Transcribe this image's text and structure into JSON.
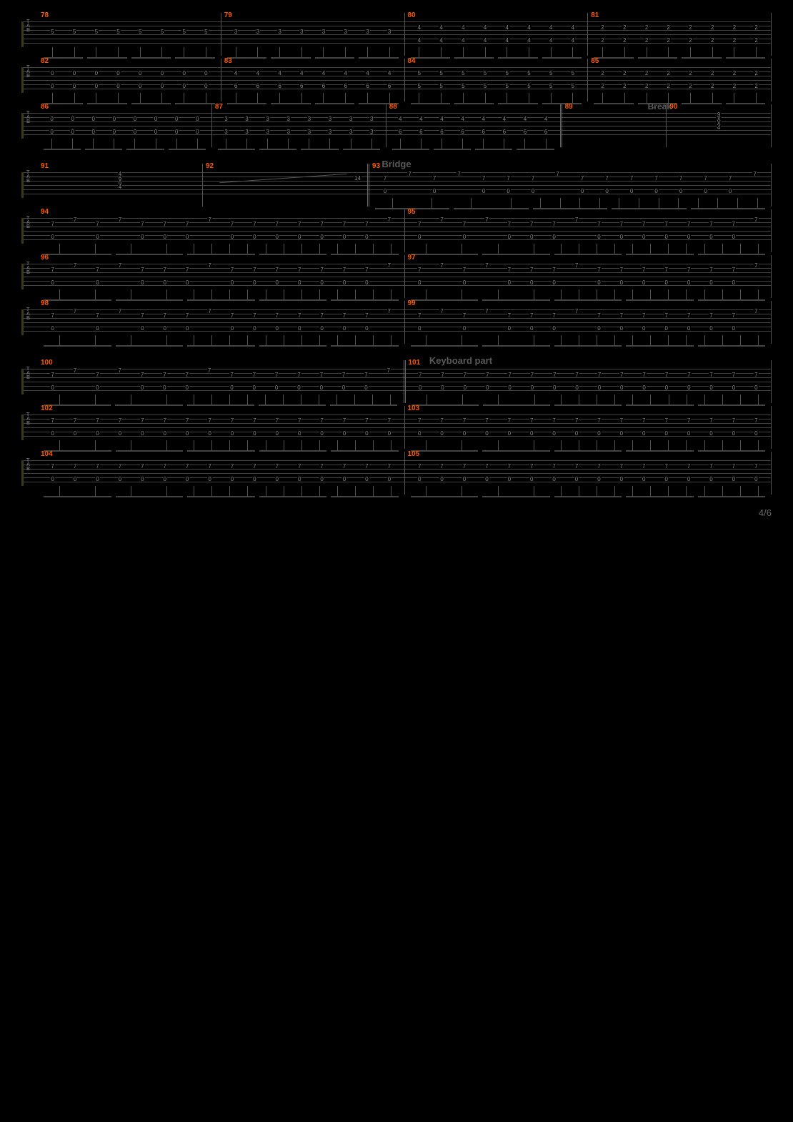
{
  "page_number": "4/6",
  "colors": {
    "background": "#000000",
    "staff_line": "#444444",
    "measure_number": "#ff5a00",
    "note_text": "#888888",
    "section_label": "#5a5a5a",
    "staff_bracket": "#3a3a1a"
  },
  "typography": {
    "measure_num_fontsize": 10,
    "note_fontsize": 8,
    "section_fontsize": 13
  },
  "tab_clef_letters": [
    "T",
    "A",
    "B"
  ],
  "sections": [
    {
      "label": "Break",
      "before_measure": 89,
      "position": "right"
    },
    {
      "label": "Bridge",
      "before_measure": 91,
      "position": "center"
    },
    {
      "label": "Keyboard part",
      "before_measure": 101,
      "position": "center-right"
    }
  ],
  "systems": [
    {
      "measures": [
        {
          "num": 78,
          "pattern": "eighth_pairs_4x2",
          "frets_low": [
            "5",
            "5",
            "5",
            "5",
            "5",
            "5",
            "5",
            "5"
          ],
          "string": 6
        },
        {
          "num": 79,
          "pattern": "eighth_pairs_4x2",
          "frets_low": [
            "3",
            "3",
            "3",
            "3",
            "3",
            "3",
            "3",
            "3"
          ],
          "string": 6
        },
        {
          "num": 80,
          "pattern": "eighth_pairs_4x2",
          "frets_two": [
            [
              "4",
              "4",
              "4",
              "4",
              "4",
              "4",
              "4",
              "4"
            ],
            [
              "4",
              "4",
              "4",
              "4",
              "4",
              "4",
              "4",
              "4"
            ]
          ],
          "strings": [
            5,
            6
          ]
        },
        {
          "num": 81,
          "pattern": "eighth_pairs_4x2",
          "frets_two": [
            [
              "2",
              "2",
              "2",
              "2",
              "2",
              "2",
              "2",
              "2"
            ],
            [
              "2",
              "2",
              "2",
              "2",
              "2",
              "2",
              "2",
              "2"
            ]
          ],
          "strings": [
            5,
            6
          ]
        }
      ]
    },
    {
      "measures": [
        {
          "num": 82,
          "pattern": "eighth_pairs_4x2",
          "frets_two": [
            [
              "0",
              "0",
              "0",
              "0",
              "0",
              "0",
              "0",
              "0"
            ],
            [
              "0",
              "0",
              "0",
              "0",
              "0",
              "0",
              "0",
              "0"
            ]
          ],
          "strings": [
            5,
            6
          ]
        },
        {
          "num": 83,
          "pattern": "eighth_pairs_4x2",
          "frets_two": [
            [
              "4",
              "4",
              "4",
              "4",
              "4",
              "4",
              "4",
              "4"
            ],
            [
              "6",
              "6",
              "6",
              "6",
              "6",
              "6",
              "6",
              "6"
            ]
          ],
          "strings": [
            5,
            6
          ]
        },
        {
          "num": 84,
          "pattern": "eighth_pairs_4x2",
          "frets_two": [
            [
              "5",
              "5",
              "5",
              "5",
              "5",
              "5",
              "5",
              "5"
            ],
            [
              "5",
              "5",
              "5",
              "5",
              "5",
              "5",
              "5",
              "5"
            ]
          ],
          "strings": [
            5,
            6
          ]
        },
        {
          "num": 85,
          "pattern": "eighth_pairs_4x2",
          "frets_two": [
            [
              "2",
              "2",
              "2",
              "2",
              "2",
              "2",
              "2",
              "2"
            ],
            [
              "2",
              "2",
              "2",
              "2",
              "2",
              "2",
              "2",
              "2"
            ]
          ],
          "strings": [
            5,
            6
          ]
        }
      ]
    },
    {
      "section_right": "Break",
      "measures": [
        {
          "num": 86,
          "pattern": "eighth_pairs_4x2",
          "frets_two": [
            [
              "0",
              "0",
              "0",
              "0",
              "0",
              "0",
              "0",
              "0"
            ],
            [
              "0",
              "0",
              "0",
              "0",
              "0",
              "0",
              "0",
              "0"
            ]
          ],
          "strings": [
            5,
            6
          ]
        },
        {
          "num": 87,
          "pattern": "eighth_pairs_4x2",
          "frets_two": [
            [
              "3",
              "3",
              "3",
              "3",
              "3",
              "3",
              "3",
              "3"
            ],
            [
              "3",
              "3",
              "3",
              "3",
              "3",
              "3",
              "3",
              "3"
            ]
          ],
          "strings": [
            5,
            6
          ]
        },
        {
          "num": 88,
          "pattern": "eighth_pairs_4x2",
          "frets_two": [
            [
              "4",
              "4",
              "4",
              "4",
              "4",
              "4",
              "4",
              "4"
            ],
            [
              "6",
              "6",
              "6",
              "6",
              "6",
              "6",
              "6",
              "6"
            ]
          ],
          "strings": [
            5,
            6
          ],
          "double_end": true
        },
        {
          "num": 89,
          "pattern": "rest",
          "width": 0.6
        },
        {
          "num": 90,
          "pattern": "chord",
          "chord": [
            "9",
            "X",
            "X",
            "4"
          ],
          "width": 0.6
        }
      ]
    },
    {
      "section_center": "Bridge",
      "measures": [
        {
          "num": 91,
          "pattern": "chord_held",
          "chord": [
            "4",
            "6",
            "6",
            "4"
          ],
          "width": 0.9
        },
        {
          "num": 92,
          "pattern": "slide_up",
          "from": "",
          "to": "14",
          "width": 0.9,
          "double_end": true
        },
        {
          "num": 93,
          "pattern": "bridge_riff",
          "frets": [
            [
              "",
              "7",
              "",
              "7",
              "",
              "7",
              "",
              "",
              "",
              "",
              "",
              "7"
            ],
            [
              "7",
              "",
              "",
              "",
              "",
              "",
              "",
              "",
              "",
              "",
              "",
              ""
            ],
            [
              "",
              "",
              "0",
              "",
              "0",
              "",
              "0",
              "0",
              "0",
              "0",
              "0",
              ""
            ],
            [
              "0",
              "",
              "",
              "0",
              "",
              "0",
              "",
              "0",
              "0",
              "0",
              "0",
              "0"
            ]
          ],
          "width": 2.2
        }
      ]
    },
    {
      "measures": [
        {
          "num": 94,
          "pattern": "bridge_riff",
          "width": 1
        },
        {
          "num": 95,
          "pattern": "bridge_riff",
          "width": 1
        }
      ]
    },
    {
      "measures": [
        {
          "num": 96,
          "pattern": "bridge_riff",
          "width": 1
        },
        {
          "num": 97,
          "pattern": "bridge_riff",
          "width": 1
        }
      ]
    },
    {
      "measures": [
        {
          "num": 98,
          "pattern": "bridge_riff",
          "width": 1
        },
        {
          "num": 99,
          "pattern": "bridge_riff",
          "width": 1
        }
      ]
    },
    {
      "section_center": "Keyboard part",
      "section_center_offset": "right",
      "measures": [
        {
          "num": 100,
          "pattern": "bridge_riff",
          "width": 1,
          "double_end": true
        },
        {
          "num": 101,
          "pattern": "keyboard_riff",
          "width": 1
        }
      ]
    },
    {
      "measures": [
        {
          "num": 102,
          "pattern": "keyboard_riff",
          "width": 1
        },
        {
          "num": 103,
          "pattern": "keyboard_riff",
          "width": 1
        }
      ]
    },
    {
      "measures": [
        {
          "num": 104,
          "pattern": "keyboard_riff",
          "width": 1
        },
        {
          "num": 105,
          "pattern": "keyboard_riff",
          "width": 1
        }
      ]
    }
  ],
  "riff_templates": {
    "bridge_riff": {
      "beats": 16,
      "stem_groups": [
        2,
        2,
        4,
        4,
        4
      ],
      "rows": [
        {
          "string": 4,
          "vals": [
            "",
            "7",
            "",
            "7",
            "",
            "",
            "",
            "7",
            "",
            "",
            "",
            "",
            "",
            "",
            "",
            "7"
          ]
        },
        {
          "string": 5,
          "vals": [
            "7",
            "",
            "7",
            "",
            "7",
            "7",
            "7",
            "",
            "7",
            "7",
            "7",
            "7",
            "7",
            "7",
            "7",
            ""
          ]
        },
        {
          "string": 6,
          "vals": [
            "0",
            "",
            "0",
            "",
            "0",
            "0",
            "0",
            "",
            "0",
            "0",
            "0",
            "0",
            "0",
            "0",
            "0",
            ""
          ]
        }
      ]
    },
    "keyboard_riff": {
      "beats": 16,
      "stem_groups": [
        2,
        2,
        4,
        4,
        4
      ],
      "rows": [
        {
          "string": 5,
          "vals": [
            "7",
            "7",
            "7",
            "7",
            "7",
            "7",
            "7",
            "7",
            "7",
            "7",
            "7",
            "7",
            "7",
            "7",
            "7",
            "7"
          ]
        },
        {
          "string": 6,
          "vals": [
            "0",
            "0",
            "0",
            "0",
            "0",
            "0",
            "0",
            "0",
            "0",
            "0",
            "0",
            "0",
            "0",
            "0",
            "0",
            "0"
          ]
        }
      ]
    }
  }
}
